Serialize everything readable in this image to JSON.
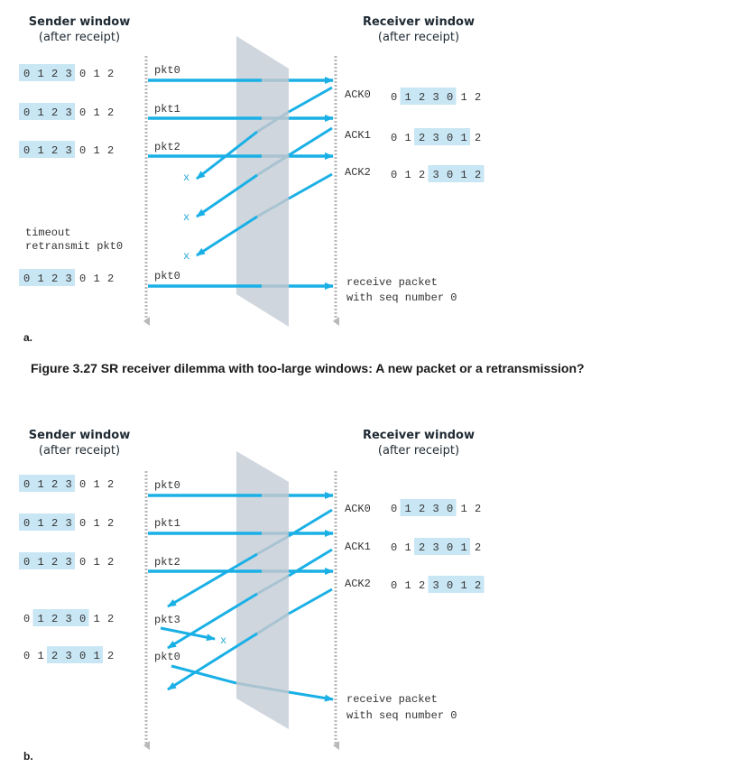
{
  "colors": {
    "arrow": "#1ab0e6",
    "arrow_faded": "#a8c3d1",
    "window_highlight": "#c9e6f4",
    "medium": "#cfd6de",
    "timeline": "#b9b9b9"
  },
  "caption": "Figure 3.27 SR receiver dilemma with too-large windows: A new packet or a retransmission?",
  "panel_a": {
    "label": "a.",
    "sender_title": "Sender window",
    "sender_subtitle": "(after receipt)",
    "receiver_title": "Receiver window",
    "receiver_subtitle": "(after receipt)",
    "sender_windows": [
      {
        "seq": [
          "0",
          "1",
          "2",
          "3",
          "0",
          "1",
          "2"
        ],
        "start": 0
      },
      {
        "seq": [
          "0",
          "1",
          "2",
          "3",
          "0",
          "1",
          "2"
        ],
        "start": 0
      },
      {
        "seq": [
          "0",
          "1",
          "2",
          "3",
          "0",
          "1",
          "2"
        ],
        "start": 0
      },
      {
        "seq": [
          "0",
          "1",
          "2",
          "3",
          "0",
          "1",
          "2"
        ],
        "start": 0
      }
    ],
    "receiver_windows": [
      {
        "ack": "ACK0",
        "seq": [
          "0",
          "1",
          "2",
          "3",
          "0",
          "1",
          "2"
        ],
        "start": 1
      },
      {
        "ack": "ACK1",
        "seq": [
          "0",
          "1",
          "2",
          "3",
          "0",
          "1",
          "2"
        ],
        "start": 2
      },
      {
        "ack": "ACK2",
        "seq": [
          "0",
          "1",
          "2",
          "3",
          "0",
          "1",
          "2"
        ],
        "start": 3
      }
    ],
    "packets": [
      "pkt0",
      "pkt1",
      "pkt2",
      "pkt0"
    ],
    "timeout_line1": "timeout",
    "timeout_line2": "retransmit pkt0",
    "lost_marks": [
      "x",
      "x",
      "x"
    ],
    "receive_line1": "receive packet",
    "receive_line2": "with seq number 0"
  },
  "panel_b": {
    "label": "b.",
    "sender_title": "Sender window",
    "sender_subtitle": "(after receipt)",
    "receiver_title": "Receiver window",
    "receiver_subtitle": "(after receipt)",
    "sender_windows": [
      {
        "seq": [
          "0",
          "1",
          "2",
          "3",
          "0",
          "1",
          "2"
        ],
        "start": 0
      },
      {
        "seq": [
          "0",
          "1",
          "2",
          "3",
          "0",
          "1",
          "2"
        ],
        "start": 0
      },
      {
        "seq": [
          "0",
          "1",
          "2",
          "3",
          "0",
          "1",
          "2"
        ],
        "start": 0
      },
      {
        "seq": [
          "0",
          "1",
          "2",
          "3",
          "0",
          "1",
          "2"
        ],
        "start": 1
      },
      {
        "seq": [
          "0",
          "1",
          "2",
          "3",
          "0",
          "1",
          "2"
        ],
        "start": 2
      }
    ],
    "receiver_windows": [
      {
        "ack": "ACK0",
        "seq": [
          "0",
          "1",
          "2",
          "3",
          "0",
          "1",
          "2"
        ],
        "start": 1
      },
      {
        "ack": "ACK1",
        "seq": [
          "0",
          "1",
          "2",
          "3",
          "0",
          "1",
          "2"
        ],
        "start": 2
      },
      {
        "ack": "ACK2",
        "seq": [
          "0",
          "1",
          "2",
          "3",
          "0",
          "1",
          "2"
        ],
        "start": 3
      }
    ],
    "packets": [
      "pkt0",
      "pkt1",
      "pkt2",
      "pkt3",
      "pkt0"
    ],
    "lost_marks": [
      "x"
    ],
    "receive_line1": "receive packet",
    "receive_line2": "with seq number 0"
  }
}
